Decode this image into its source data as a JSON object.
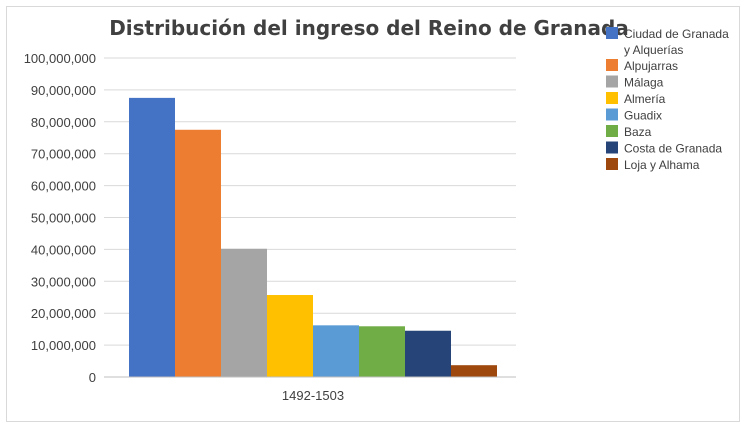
{
  "chart_data": {
    "type": "bar",
    "title": "Distribución del ingreso del Reino de Granada",
    "categories": [
      "1492-1503"
    ],
    "xlabel": "",
    "ylabel": "",
    "ylim": [
      0,
      100000000
    ],
    "yticks": [
      "0",
      "10,000,000",
      "20,000,000",
      "30,000,000",
      "40,000,000",
      "50,000,000",
      "60,000,000",
      "70,000,000",
      "80,000,000",
      "90,000,000",
      "100,000,000"
    ],
    "grid": true,
    "legend_position": "right",
    "series": [
      {
        "name": "Ciudad de Granada y Alquerías",
        "values": [
          87500000
        ],
        "color": "#4472C4"
      },
      {
        "name": "Alpujarras",
        "values": [
          77500000
        ],
        "color": "#ED7D31"
      },
      {
        "name": "Málaga",
        "values": [
          40200000
        ],
        "color": "#A5A5A5"
      },
      {
        "name": "Almería",
        "values": [
          25700000
        ],
        "color": "#FFC000"
      },
      {
        "name": "Guadix",
        "values": [
          16200000
        ],
        "color": "#5B9BD5"
      },
      {
        "name": "Baza",
        "values": [
          15900000
        ],
        "color": "#70AD47"
      },
      {
        "name": "Costa de Granada",
        "values": [
          14500000
        ],
        "color": "#264478"
      },
      {
        "name": "Loja y Alhama",
        "values": [
          3700000
        ],
        "color": "#9E480E"
      }
    ]
  }
}
